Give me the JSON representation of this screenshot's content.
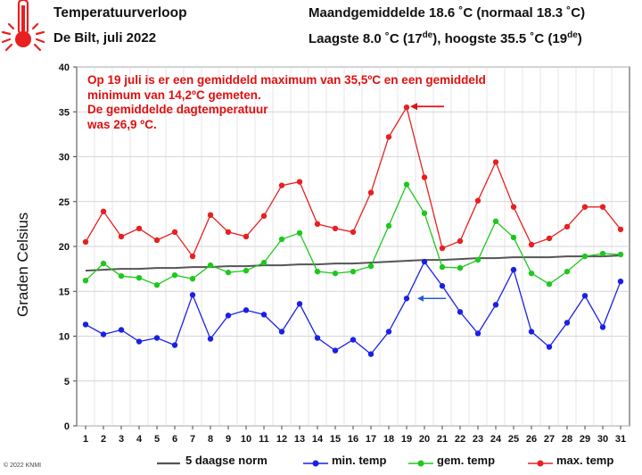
{
  "header": {
    "title": "Temperatuurverloop",
    "subtitle": "De Bilt, juli 2022",
    "monthly": "Maandgemiddelde 18.6 ˚C (normaal 18.3 ˚C)",
    "extremes_prefix": "Laagste 8.0 ˚C (17",
    "extremes_sup1": "de",
    "extremes_mid": "), hoogste 35.5 ˚C (19",
    "extremes_sup2": "de",
    "extremes_suffix": ")"
  },
  "annotation": {
    "line1": "Op 19 juli is er een gemiddeld maximum van 35,5ºC en een gemiddeld",
    "line2": "minimum van 14,2ºC gemeten.",
    "line3": "De gemiddelde dagtemperatuur",
    "line4": "was 26,9 ºC."
  },
  "copyright": "© 2022 KNMI",
  "colors": {
    "max": "#e82020",
    "gem": "#1ec81e",
    "min": "#1a20e6",
    "norm": "#555555",
    "arrow": "#e01010",
    "arrow_blue": "#2060d0"
  },
  "chart_data": {
    "type": "line",
    "ylabel": "Graden Celsius",
    "ylim": [
      0,
      40
    ],
    "yticks": [
      0,
      5,
      10,
      15,
      20,
      25,
      30,
      35,
      40
    ],
    "x": [
      1,
      2,
      3,
      4,
      5,
      6,
      7,
      8,
      9,
      10,
      11,
      12,
      13,
      14,
      15,
      16,
      17,
      18,
      19,
      20,
      21,
      22,
      23,
      24,
      25,
      26,
      27,
      28,
      29,
      30,
      31
    ],
    "grid": true,
    "legend": "bottom",
    "series": [
      {
        "name": "5 daagse norm",
        "key": "norm",
        "values": [
          17.3,
          17.4,
          17.5,
          17.5,
          17.6,
          17.6,
          17.7,
          17.7,
          17.8,
          17.8,
          17.9,
          17.9,
          18.0,
          18.0,
          18.1,
          18.1,
          18.2,
          18.3,
          18.4,
          18.5,
          18.5,
          18.6,
          18.7,
          18.7,
          18.8,
          18.8,
          18.8,
          18.9,
          18.9,
          18.9,
          19.0
        ]
      },
      {
        "name": "min. temp",
        "key": "min",
        "values": [
          11.3,
          10.2,
          10.7,
          9.4,
          9.8,
          9.0,
          14.6,
          9.7,
          12.3,
          12.9,
          12.4,
          10.5,
          13.6,
          9.8,
          8.4,
          9.6,
          8.0,
          10.5,
          14.2,
          18.3,
          15.6,
          12.7,
          10.3,
          13.5,
          17.4,
          10.5,
          8.8,
          11.5,
          14.5,
          11.0,
          16.1
        ]
      },
      {
        "name": "gem. temp",
        "key": "gem",
        "values": [
          16.2,
          18.1,
          16.7,
          16.5,
          15.7,
          16.8,
          16.4,
          17.9,
          17.1,
          17.3,
          18.2,
          20.8,
          21.5,
          17.2,
          17.0,
          17.2,
          17.8,
          22.3,
          26.9,
          23.7,
          17.7,
          17.6,
          18.5,
          22.8,
          21.0,
          17.0,
          15.8,
          17.2,
          18.9,
          19.2,
          19.1
        ]
      },
      {
        "name": "max. temp",
        "key": "max",
        "values": [
          20.5,
          23.9,
          21.1,
          22.0,
          20.7,
          21.6,
          18.9,
          23.5,
          21.6,
          21.1,
          23.4,
          26.8,
          27.2,
          22.5,
          22.0,
          21.6,
          26.0,
          32.2,
          35.5,
          27.7,
          19.8,
          20.6,
          25.1,
          29.4,
          24.4,
          20.2,
          20.9,
          22.2,
          24.4,
          24.4,
          21.9
        ]
      }
    ]
  }
}
